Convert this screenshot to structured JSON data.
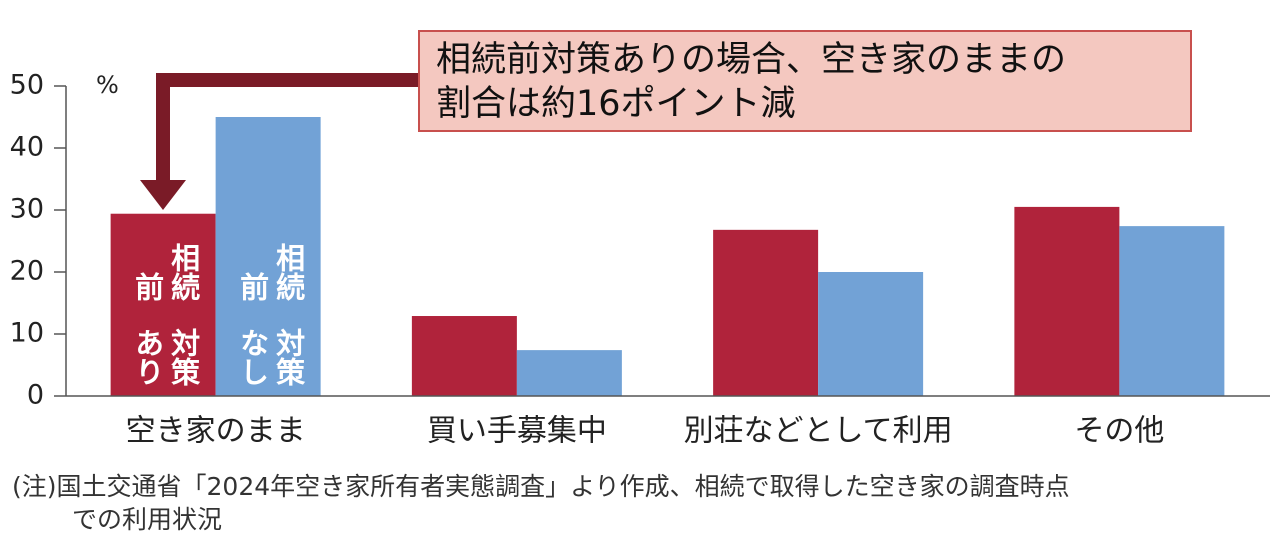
{
  "chart_data": {
    "type": "bar",
    "categories": [
      "空き家のまま",
      "買い手募集中",
      "別荘などとして利用",
      "その他"
    ],
    "series": [
      {
        "name": "相続前対策あり",
        "color": "#b0233b",
        "values": [
          29.4,
          12.9,
          26.8,
          30.5
        ]
      },
      {
        "name": "相続前対策なし",
        "color": "#72a2d6",
        "values": [
          45,
          7.4,
          20,
          27.4
        ]
      }
    ],
    "ylim": [
      0,
      50
    ],
    "yticks": [
      0,
      10,
      20,
      30,
      40,
      50
    ],
    "y_unit": "%",
    "annotation": [
      "相続前対策ありの場合、空き家のままの",
      "割合は約16ポイント減"
    ],
    "note": [
      "(注)国土交通省「2024年空き家所有者実態調査」より作成、相続で取得した空き家の調査時点",
      "での利用状況"
    ]
  }
}
